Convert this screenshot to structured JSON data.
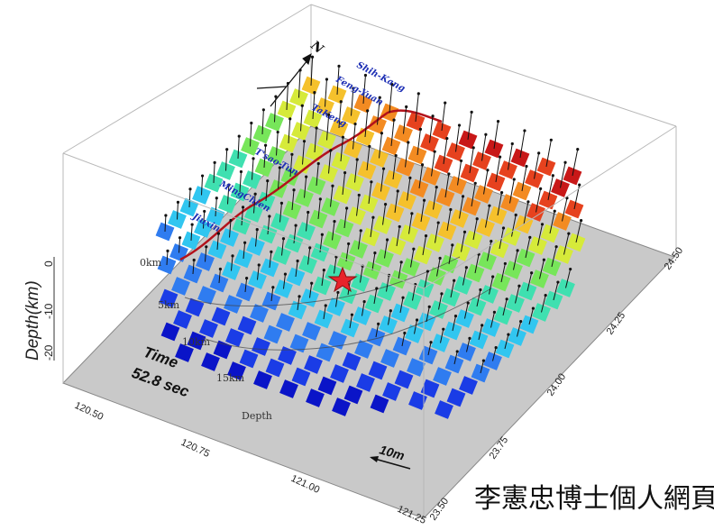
{
  "axes": {
    "depth_label": "Depth(km)",
    "depth_ticks": [
      "0",
      "-10",
      "-20"
    ],
    "lon_ticks": [
      "120.50",
      "120.75",
      "121.00",
      "121.25"
    ],
    "lat_ticks": [
      "23.50",
      "23.75",
      "24.00",
      "24.25",
      "24.50"
    ]
  },
  "depth_contours": [
    "0km",
    "5km",
    "10km",
    "15km",
    "Depth"
  ],
  "time": {
    "label": "Time",
    "value": "52.8 sec"
  },
  "scale_bar": {
    "label": "10m"
  },
  "north_arrow": {
    "label": "N"
  },
  "places": [
    "Shih-Kang",
    "Feng-Yuan",
    "TaKeng",
    "T'sao-Tun",
    "MingChien",
    "Jiuxin"
  ],
  "site_label": "李憲忠博士個人網頁",
  "colors": {
    "platform": "#c9c9c9",
    "fault_trace": "#b3121b",
    "place_text": "#1d2fb5",
    "epicenter": "#e8232b"
  }
}
